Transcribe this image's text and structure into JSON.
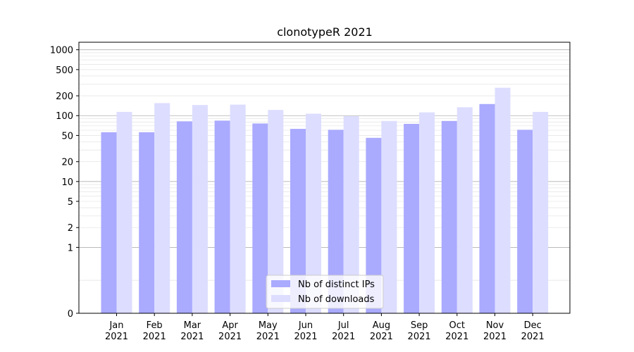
{
  "chart_data": {
    "type": "bar",
    "title": "clonotypeR 2021",
    "xlabel": "",
    "ylabel": "",
    "yscale": "symlog",
    "ylim": [
      0,
      1300
    ],
    "yticks": [
      0,
      1,
      2,
      5,
      10,
      20,
      50,
      100,
      200,
      500,
      1000
    ],
    "ytick_labels": [
      "0",
      "1",
      "2",
      "5",
      "10",
      "20",
      "50",
      "100",
      "200",
      "500",
      "1000"
    ],
    "categories": [
      {
        "month": "Jan",
        "year": "2021"
      },
      {
        "month": "Feb",
        "year": "2021"
      },
      {
        "month": "Mar",
        "year": "2021"
      },
      {
        "month": "Apr",
        "year": "2021"
      },
      {
        "month": "May",
        "year": "2021"
      },
      {
        "month": "Jun",
        "year": "2021"
      },
      {
        "month": "Jul",
        "year": "2021"
      },
      {
        "month": "Aug",
        "year": "2021"
      },
      {
        "month": "Sep",
        "year": "2021"
      },
      {
        "month": "Oct",
        "year": "2021"
      },
      {
        "month": "Nov",
        "year": "2021"
      },
      {
        "month": "Dec",
        "year": "2021"
      }
    ],
    "series": [
      {
        "name": "Nb of distinct IPs",
        "color": "#aaaaff",
        "values": [
          56,
          56,
          82,
          84,
          76,
          63,
          61,
          46,
          75,
          83,
          150,
          61
        ]
      },
      {
        "name": "Nb of downloads",
        "color": "#ddddff",
        "values": [
          114,
          155,
          145,
          147,
          122,
          107,
          98,
          83,
          112,
          134,
          265,
          114
        ]
      }
    ],
    "grid": true,
    "legend": {
      "position": "bottom-center"
    }
  }
}
